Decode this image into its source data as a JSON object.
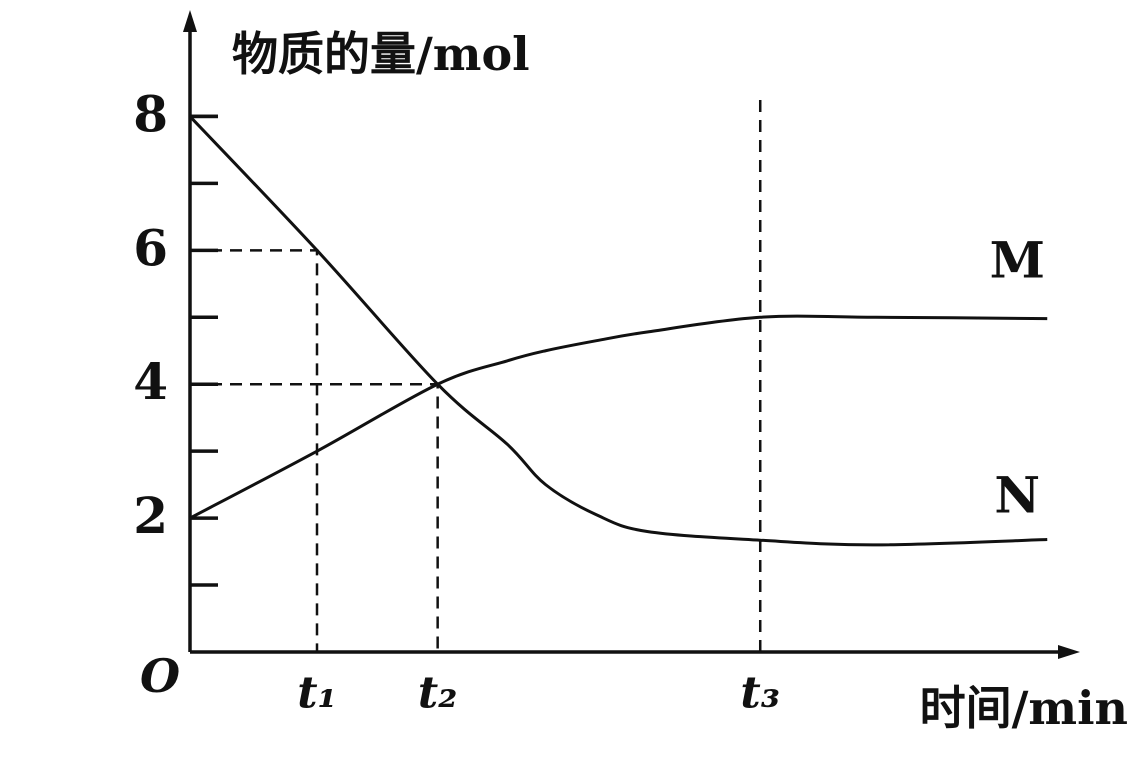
{
  "chart_data": {
    "type": "line",
    "y_label": "物质的量/mol",
    "x_label": "时间/min",
    "origin_label": "O",
    "x": [
      0,
      1,
      1.95,
      2.5,
      2.8,
      3.2,
      3.6,
      4.49,
      5.4,
      6.75
    ],
    "series": [
      {
        "name": "M",
        "color": "#111111",
        "values": [
          2,
          3,
          4,
          4.35,
          4.5,
          4.65,
          4.78,
          5,
          5,
          4.98
        ]
      },
      {
        "name": "N",
        "color": "#111111",
        "values": [
          8,
          6,
          4,
          3.1,
          2.5,
          2.05,
          1.8,
          1.67,
          1.6,
          1.68
        ]
      }
    ],
    "xlim": [
      0,
      7
    ],
    "ylim": [
      0,
      9.5
    ],
    "xticks": [
      {
        "value": 1,
        "label": "t₁"
      },
      {
        "value": 1.95,
        "label": "t₂"
      },
      {
        "value": 4.49,
        "label": "t₃"
      }
    ],
    "yticks": [
      2,
      4,
      6,
      8
    ],
    "minor_yticks": [
      1,
      3,
      5,
      7,
      8
    ]
  }
}
